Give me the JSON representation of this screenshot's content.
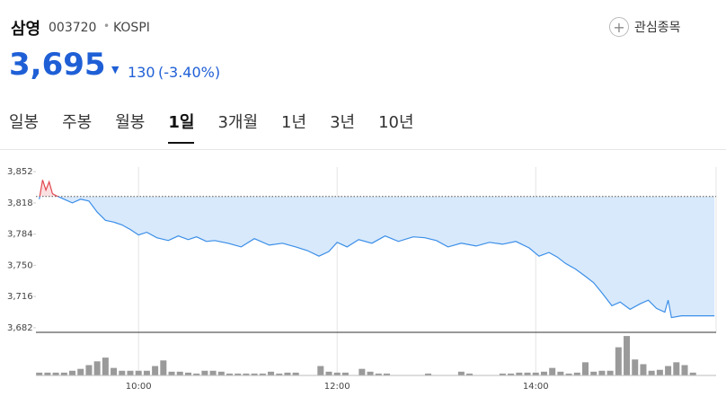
{
  "header": {
    "name": "삼영",
    "code": "003720",
    "market": "KOSPI",
    "price": "3,695",
    "change": "130",
    "change_rate": "(-3.40%)",
    "watch_button": "관심종목",
    "tabs": [
      "일봉",
      "주봉",
      "월봉",
      "1일",
      "3개월",
      "1년",
      "3년",
      "10년"
    ],
    "active_tab": 3
  },
  "chart_data": {
    "type": "line",
    "x": [
      540,
      542,
      544,
      546,
      548,
      550,
      555,
      560,
      565,
      570,
      575,
      580,
      585,
      590,
      595,
      600,
      605,
      611,
      618,
      624,
      630,
      635,
      641,
      646,
      654,
      662,
      670,
      679,
      687,
      695,
      702,
      709,
      715,
      720,
      726,
      733,
      741,
      749,
      757,
      766,
      773,
      780,
      787,
      795,
      804,
      812,
      820,
      828,
      836,
      842,
      848,
      853,
      858,
      864,
      870,
      875,
      880,
      886,
      891,
      897,
      903,
      908,
      913,
      918,
      920,
      922,
      928,
      934,
      940,
      948
    ],
    "series": [
      {
        "color": "#3b8ee8",
        "up_color": "#e2474f",
        "values": [
          3822,
          3843,
          3832,
          3841,
          3828,
          3826,
          3822,
          3818,
          3822,
          3820,
          3808,
          3799,
          3797,
          3794,
          3789,
          3783,
          3786,
          3780,
          3777,
          3782,
          3778,
          3781,
          3776,
          3777,
          3774,
          3770,
          3779,
          3772,
          3774,
          3770,
          3766,
          3760,
          3765,
          3775,
          3770,
          3778,
          3774,
          3782,
          3776,
          3781,
          3780,
          3777,
          3770,
          3774,
          3771,
          3775,
          3773,
          3776,
          3769,
          3760,
          3764,
          3759,
          3752,
          3746,
          3738,
          3731,
          3720,
          3706,
          3710,
          3702,
          3708,
          3712,
          3703,
          3699,
          3712,
          3693,
          3695,
          3695,
          3695,
          3695
        ]
      }
    ],
    "reference": 3825,
    "xlim": [
      538,
      949
    ],
    "xticks": [
      {
        "value": 600,
        "label": "10:00"
      },
      {
        "value": 720,
        "label": "12:00"
      },
      {
        "value": 840,
        "label": "14:00"
      }
    ],
    "ylim": [
      3677,
      3857
    ],
    "yticks": [
      {
        "value": 3852,
        "label": "3,852"
      },
      {
        "value": 3818,
        "label": "3,818"
      },
      {
        "value": 3784,
        "label": "3,784"
      },
      {
        "value": 3750,
        "label": "3,750"
      },
      {
        "value": 3716,
        "label": "3,716"
      },
      {
        "value": 3682,
        "label": "3,682"
      }
    ],
    "grid": "x",
    "volume": {
      "color": "#9a9a9a",
      "lim": [
        0,
        44
      ],
      "x": [
        540,
        545,
        550,
        555,
        560,
        565,
        570,
        575,
        580,
        585,
        590,
        595,
        600,
        605,
        610,
        615,
        620,
        625,
        630,
        635,
        640,
        645,
        650,
        655,
        660,
        665,
        670,
        675,
        680,
        685,
        690,
        695,
        700,
        705,
        710,
        715,
        720,
        725,
        730,
        735,
        740,
        745,
        750,
        755,
        760,
        765,
        770,
        775,
        780,
        785,
        790,
        795,
        800,
        805,
        810,
        815,
        820,
        825,
        830,
        835,
        840,
        845,
        850,
        855,
        860,
        865,
        870,
        875,
        880,
        885,
        890,
        895,
        900,
        905,
        910,
        915,
        920,
        925,
        930,
        935
      ],
      "values": [
        3,
        3,
        3,
        3,
        5,
        7,
        11,
        15,
        19,
        8,
        5,
        5,
        5,
        5,
        10,
        16,
        4,
        4,
        3,
        2,
        5,
        5,
        4,
        2,
        2,
        2,
        2,
        2,
        4,
        2,
        3,
        3,
        null,
        null,
        10,
        4,
        3,
        3,
        null,
        7,
        4,
        2,
        2,
        null,
        null,
        null,
        null,
        2,
        null,
        null,
        null,
        4,
        2,
        null,
        null,
        null,
        2,
        2,
        3,
        3,
        3,
        4,
        8,
        4,
        2,
        3,
        14,
        4,
        5,
        5,
        30,
        42,
        17,
        12,
        5,
        6,
        10,
        14,
        11,
        3
      ]
    }
  }
}
